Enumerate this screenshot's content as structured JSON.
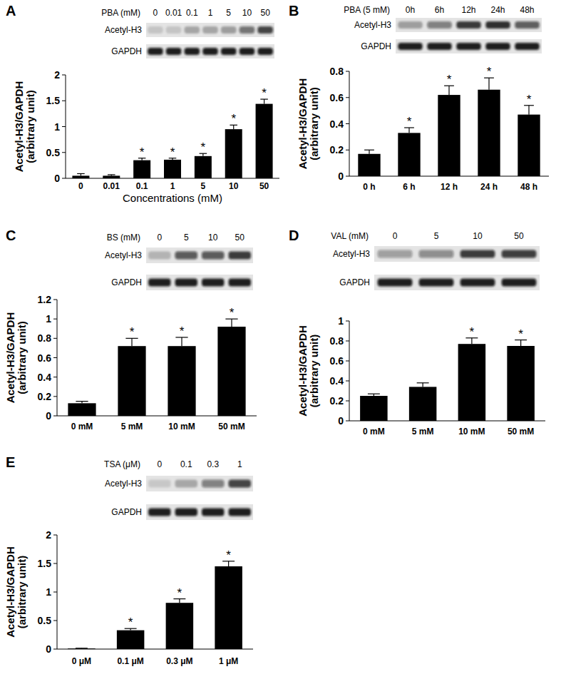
{
  "chart_data": [
    {
      "type": "bar",
      "title": "A",
      "x_label": "Concentrations (mM)",
      "y_label": [
        "Acetyl-H3/GAPDH",
        "(arbitrary unit)"
      ],
      "categories": [
        "0",
        "0.01",
        "0.1",
        "1",
        "5",
        "10",
        "50"
      ],
      "values": [
        0.05,
        0.05,
        0.35,
        0.36,
        0.43,
        0.95,
        1.44
      ],
      "errors": [
        0.04,
        0.02,
        0.04,
        0.03,
        0.05,
        0.08,
        0.09
      ],
      "value_annotations": [
        null,
        null,
        "*",
        "*",
        "*",
        "*",
        "*"
      ],
      "color": "#000000",
      "ylim": [
        0,
        2
      ],
      "yticks": [
        0,
        0.5,
        1,
        1.5,
        2
      ],
      "grid": false,
      "blot": {
        "treatment_label": "PBA (mM)",
        "lanes": [
          "0",
          "0.01",
          "0.1",
          "1",
          "5",
          "10",
          "50"
        ],
        "rows": [
          "Acetyl-H3",
          "GAPDH"
        ]
      }
    },
    {
      "type": "bar",
      "title": "B",
      "y_label": [
        "Acetyl-H3/GAPDH",
        "(arbitrary unit)"
      ],
      "categories": [
        "0 h",
        "6 h",
        "12 h",
        "24 h",
        "48 h"
      ],
      "values": [
        0.17,
        0.33,
        0.62,
        0.66,
        0.47
      ],
      "errors": [
        0.03,
        0.04,
        0.07,
        0.09,
        0.07
      ],
      "value_annotations": [
        null,
        "*",
        "*",
        "*",
        "*"
      ],
      "color": "#000000",
      "ylim": [
        0,
        0.8
      ],
      "yticks": [
        0,
        0.2,
        0.4,
        0.6,
        0.8
      ],
      "grid": false,
      "blot": {
        "treatment_label": "PBA (5 mM)",
        "lanes": [
          "0h",
          "6h",
          "12h",
          "24h",
          "48h"
        ],
        "rows": [
          "Acetyl-H3",
          "GAPDH"
        ]
      }
    },
    {
      "type": "bar",
      "title": "C",
      "y_label": [
        "Acetyl-H3/GAPDH",
        "(arbitrary unit)"
      ],
      "categories": [
        "0 mM",
        "5 mM",
        "10 mM",
        "50 mM"
      ],
      "values": [
        0.13,
        0.72,
        0.72,
        0.92
      ],
      "errors": [
        0.02,
        0.08,
        0.09,
        0.08
      ],
      "value_annotations": [
        null,
        "*",
        "*",
        "*"
      ],
      "color": "#000000",
      "ylim": [
        0,
        1.2
      ],
      "yticks": [
        0,
        0.2,
        0.4,
        0.6,
        0.8,
        1,
        1.2
      ],
      "grid": false,
      "blot": {
        "treatment_label": "BS (mM)",
        "lanes": [
          "0",
          "5",
          "10",
          "50"
        ],
        "rows": [
          "Acetyl-H3",
          "GAPDH"
        ]
      }
    },
    {
      "type": "bar",
      "title": "D",
      "y_label": [
        "Acetyl-H3/GAPDH",
        "(arbitrary unit)"
      ],
      "categories": [
        "0 mM",
        "5 mM",
        "10 mM",
        "50 mM"
      ],
      "values": [
        0.25,
        0.34,
        0.77,
        0.75
      ],
      "errors": [
        0.02,
        0.04,
        0.06,
        0.06
      ],
      "value_annotations": [
        null,
        null,
        "*",
        "*"
      ],
      "color": "#000000",
      "ylim": [
        0,
        1
      ],
      "yticks": [
        0,
        0.2,
        0.4,
        0.6,
        0.8,
        1
      ],
      "grid": false,
      "blot": {
        "treatment_label": "VAL (mM)",
        "lanes": [
          "0",
          "5",
          "10",
          "50"
        ],
        "rows": [
          "Acetyl-H3",
          "GAPDH"
        ]
      }
    },
    {
      "type": "bar",
      "title": "E",
      "y_label": [
        "Acetyl-H3/GAPDH",
        "(arbitrary unit)"
      ],
      "categories": [
        "0 μM",
        "0.1 μM",
        "0.3 μM",
        "1 μM"
      ],
      "values": [
        0.01,
        0.33,
        0.81,
        1.45
      ],
      "errors": [
        0.005,
        0.03,
        0.07,
        0.09
      ],
      "value_annotations": [
        null,
        "*",
        "*",
        "*"
      ],
      "color": "#000000",
      "ylim": [
        0,
        2
      ],
      "yticks": [
        0,
        0.5,
        1,
        1.5,
        2
      ],
      "grid": false,
      "blot": {
        "treatment_label": "TSA (μM)",
        "lanes": [
          "0",
          "0.1",
          "0.3",
          "1"
        ],
        "rows": [
          "Acetyl-H3",
          "GAPDH"
        ]
      }
    }
  ]
}
